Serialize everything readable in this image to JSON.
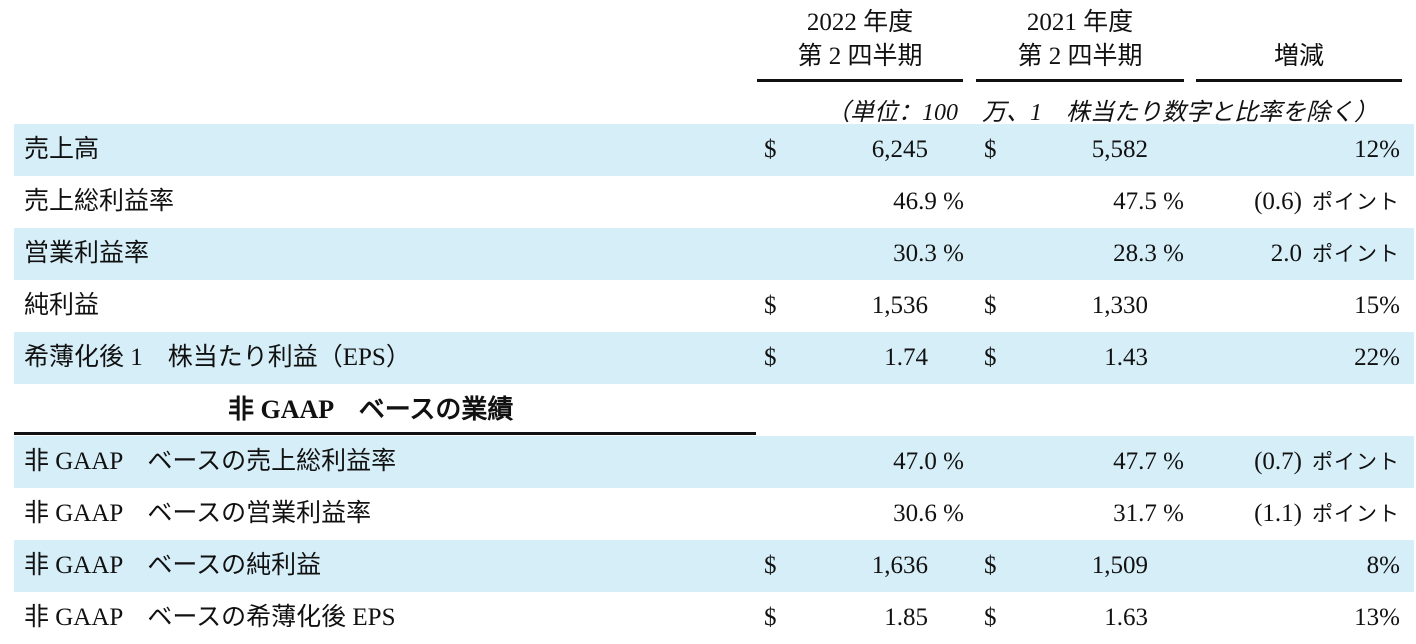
{
  "header": {
    "col1": {
      "line1": "2022 年度",
      "line2": "第 2 四半期"
    },
    "col2": {
      "line1": "2021 年度",
      "line2": "第 2 四半期"
    },
    "col3": "増減",
    "units_note": "（単位：100　万、1　株当たり数字と比率を除く）"
  },
  "rows": [
    {
      "label": "売上高",
      "c1_cur": "$",
      "c1": "6,245",
      "c2_cur": "$",
      "c2": "5,582",
      "change": "12%",
      "change_unit": ""
    },
    {
      "label": "売上総利益率",
      "c1_cur": "",
      "c1": "46.9 %",
      "c2_cur": "",
      "c2": "47.5 %",
      "change": "(0.6)",
      "change_unit": "ポイント"
    },
    {
      "label": "営業利益率",
      "c1_cur": "",
      "c1": "30.3 %",
      "c2_cur": "",
      "c2": "28.3 %",
      "change": "2.0",
      "change_unit": "ポイント"
    },
    {
      "label": "純利益",
      "c1_cur": "$",
      "c1": "1,536",
      "c2_cur": "$",
      "c2": "1,330",
      "change": "15%",
      "change_unit": ""
    },
    {
      "label": "希薄化後 1　株当たり利益（EPS）",
      "c1_cur": "$",
      "c1": "1.74",
      "c2_cur": "$",
      "c2": "1.43",
      "change": "22%",
      "change_unit": ""
    }
  ],
  "section_title": "非 GAAP　ベースの業績",
  "gaap_rows": [
    {
      "label": "非 GAAP　ベースの売上総利益率",
      "c1_cur": "",
      "c1": "47.0 %",
      "c2_cur": "",
      "c2": "47.7 %",
      "change": "(0.7)",
      "change_unit": "ポイント"
    },
    {
      "label": "非 GAAP　ベースの営業利益率",
      "c1_cur": "",
      "c1": "30.6 %",
      "c2_cur": "",
      "c2": "31.7 %",
      "change": "(1.1)",
      "change_unit": "ポイント"
    },
    {
      "label": "非 GAAP　ベースの純利益",
      "c1_cur": "$",
      "c1": "1,636",
      "c2_cur": "$",
      "c2": "1,509",
      "change": "8%",
      "change_unit": ""
    },
    {
      "label": "非 GAAP　ベースの希薄化後 EPS",
      "c1_cur": "$",
      "c1": "1.85",
      "c2_cur": "$",
      "c2": "1.63",
      "change": "13%",
      "change_unit": ""
    }
  ],
  "colors": {
    "row_shade": "#d6eef8",
    "rule": "#111111"
  }
}
